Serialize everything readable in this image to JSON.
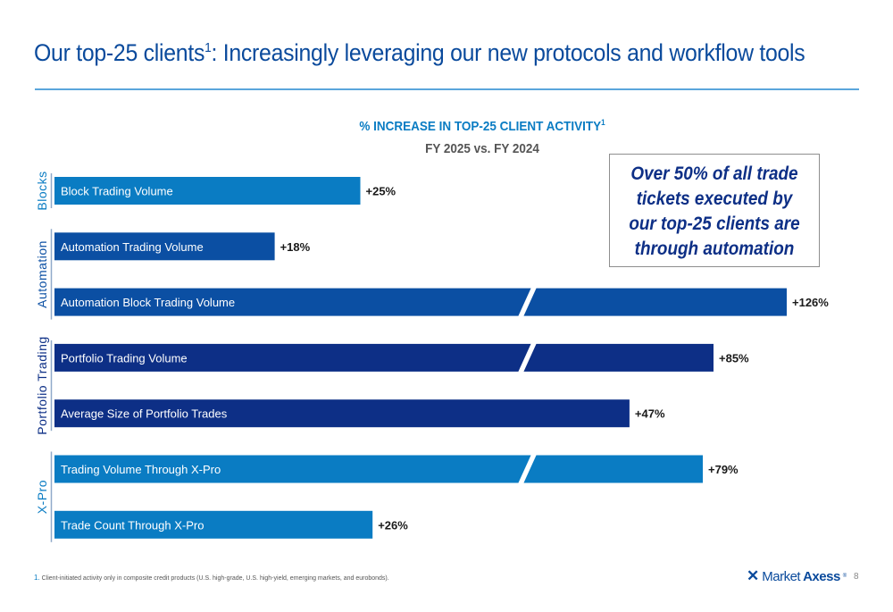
{
  "slide": {
    "title_main": "Our top-25 clients",
    "title_sup": "1",
    "title_rest": ": Increasingly leveraging our new protocols and workflow tools",
    "page_number": "8"
  },
  "callout": {
    "text": "Over 50% of all trade tickets executed by our top-25 clients are through automation"
  },
  "footnote": {
    "number": "1.",
    "text": " Client-initiated activity only in composite credit products (U.S. high-grade, U.S. high-yield, emerging markets, and eurobonds)."
  },
  "logo": {
    "mark": "✕",
    "word1": "Market",
    "word2": "Axess",
    "reg": "®"
  },
  "colors": {
    "light_blue": "#0a7cc3",
    "mid_blue": "#0b4fa3",
    "dark_blue": "#0d2f86",
    "title_blue": "#0a4a9c",
    "rule_blue": "#5aa6dc"
  },
  "chart_data": {
    "type": "bar",
    "orientation": "horizontal",
    "title": "% INCREASE IN TOP-25 CLIENT ACTIVITY",
    "title_sup": "1",
    "subtitle": "FY 2025 vs. FY 2024",
    "xlabel": "",
    "ylabel": "",
    "axis_break": true,
    "grid": false,
    "groups": [
      {
        "name": "Blocks",
        "color": "#0a7cc3",
        "bars": [
          0
        ]
      },
      {
        "name": "Automation",
        "color": "#0b4fa3",
        "bars": [
          1,
          2
        ]
      },
      {
        "name": "Portfolio Trading",
        "color": "#0d2f86",
        "bars": [
          3,
          4
        ]
      },
      {
        "name": "X-Pro",
        "color": "#0a7cc3",
        "bars": [
          5,
          6
        ]
      }
    ],
    "categories": [
      "Block Trading Volume",
      "Automation Trading Volume",
      "Automation Block Trading Volume",
      "Portfolio Trading Volume",
      "Average Size of Portfolio Trades",
      "Trading Volume Through X-Pro",
      "Trade Count Through X-Pro"
    ],
    "values": [
      25,
      18,
      126,
      85,
      47,
      79,
      26
    ],
    "value_labels": [
      "+25%",
      "+18%",
      "+126%",
      "+85%",
      "+47%",
      "+79%",
      "+26%"
    ],
    "broken": [
      false,
      false,
      true,
      true,
      false,
      true,
      false
    ],
    "bar_colors": [
      "#0a7cc3",
      "#0b4fa3",
      "#0b4fa3",
      "#0d2f86",
      "#0d2f86",
      "#0a7cc3",
      "#0a7cc3"
    ]
  }
}
